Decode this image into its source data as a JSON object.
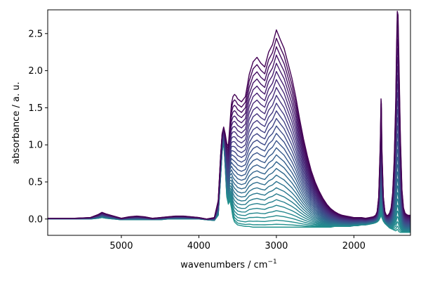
{
  "chart_data": {
    "type": "line",
    "title": "",
    "xlabel": "wavenumbers / cm",
    "xlabel_superscript": "−1",
    "ylabel": "absorbance / a. u.",
    "xlim": [
      5950,
      1270
    ],
    "ylim": [
      -0.22,
      2.82
    ],
    "x_inverted": true,
    "x_ticks": [
      5000,
      4000,
      3000,
      2000
    ],
    "x_tick_labels": [
      "5000",
      "4000",
      "3000",
      "2000"
    ],
    "y_ticks": [
      0.0,
      0.5,
      1.0,
      1.5,
      2.0,
      2.5
    ],
    "y_tick_labels": [
      "0.0",
      "0.5",
      "1.0",
      "1.5",
      "2.0",
      "2.5"
    ],
    "grid": false,
    "legend": "none",
    "colormap": "viridis (dark purple to teal)",
    "series_count": 30,
    "wavenumbers": [
      5950,
      5800,
      5600,
      5400,
      5300,
      5250,
      5200,
      5000,
      4900,
      4800,
      4700,
      4600,
      4500,
      4400,
      4300,
      4200,
      4100,
      4000,
      3900,
      3800,
      3750,
      3720,
      3700,
      3680,
      3660,
      3640,
      3620,
      3600,
      3580,
      3560,
      3540,
      3520,
      3500,
      3450,
      3400,
      3350,
      3300,
      3250,
      3200,
      3150,
      3100,
      3050,
      3000,
      2950,
      2900,
      2850,
      2800,
      2750,
      2700,
      2650,
      2600,
      2550,
      2500,
      2450,
      2400,
      2350,
      2300,
      2250,
      2200,
      2150,
      2100,
      2050,
      2000,
      1950,
      1900,
      1850,
      1800,
      1750,
      1720,
      1700,
      1680,
      1660,
      1650,
      1645,
      1640,
      1620,
      1600,
      1580,
      1560,
      1540,
      1520,
      1500,
      1480,
      1460,
      1450,
      1440,
      1430,
      1420,
      1400,
      1380,
      1360,
      1340,
      1320,
      1300,
      1270
    ],
    "series_first": [
      0.01,
      0.01,
      0.01,
      0.02,
      0.06,
      0.09,
      0.07,
      0.01,
      0.03,
      0.04,
      0.03,
      0.01,
      0.02,
      0.03,
      0.04,
      0.04,
      0.03,
      0.02,
      0.0,
      0.02,
      0.25,
      0.85,
      1.15,
      1.24,
      1.15,
      1.02,
      0.98,
      1.27,
      1.55,
      1.65,
      1.68,
      1.66,
      1.62,
      1.58,
      1.65,
      1.95,
      2.12,
      2.18,
      2.1,
      2.05,
      2.25,
      2.35,
      2.55,
      2.42,
      2.3,
      2.1,
      1.9,
      1.65,
      1.35,
      1.08,
      0.85,
      0.65,
      0.5,
      0.38,
      0.28,
      0.2,
      0.14,
      0.1,
      0.07,
      0.05,
      0.04,
      0.03,
      0.02,
      0.02,
      0.02,
      0.01,
      0.02,
      0.03,
      0.05,
      0.1,
      0.3,
      1.0,
      1.62,
      1.55,
      1.0,
      0.3,
      0.1,
      0.05,
      0.05,
      0.08,
      0.15,
      0.35,
      0.8,
      1.6,
      2.3,
      2.8,
      2.75,
      2.2,
      1.1,
      0.4,
      0.15,
      0.08,
      0.06,
      0.05,
      0.05
    ],
    "series_last": [
      0.0,
      0.0,
      0.0,
      0.0,
      0.01,
      0.02,
      0.01,
      -0.01,
      -0.01,
      -0.01,
      -0.01,
      -0.01,
      -0.01,
      0.0,
      0.0,
      0.0,
      0.0,
      0.0,
      -0.01,
      -0.02,
      0.05,
      0.55,
      0.9,
      1.05,
      0.7,
      0.3,
      0.2,
      0.25,
      0.15,
      0.02,
      -0.04,
      -0.06,
      -0.08,
      -0.09,
      -0.1,
      -0.1,
      -0.11,
      -0.11,
      -0.11,
      -0.11,
      -0.11,
      -0.11,
      -0.11,
      -0.11,
      -0.11,
      -0.11,
      -0.11,
      -0.11,
      -0.11,
      -0.11,
      -0.11,
      -0.11,
      -0.11,
      -0.11,
      -0.11,
      -0.11,
      -0.11,
      -0.1,
      -0.1,
      -0.1,
      -0.1,
      -0.1,
      -0.09,
      -0.09,
      -0.08,
      -0.08,
      -0.07,
      -0.06,
      -0.05,
      -0.04,
      -0.02,
      0.02,
      0.05,
      0.05,
      0.02,
      -0.03,
      -0.06,
      -0.08,
      -0.1,
      -0.12,
      -0.13,
      -0.14,
      -0.15,
      -0.16,
      -0.15,
      -0.14,
      -0.15,
      -0.17,
      -0.18,
      -0.18,
      -0.18,
      -0.18,
      -0.18,
      -0.18,
      -0.18
    ]
  }
}
